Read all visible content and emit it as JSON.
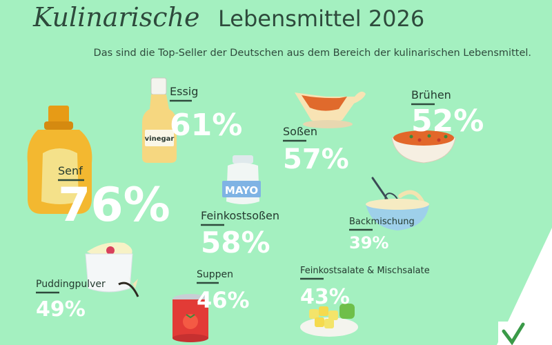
{
  "chart_data": {
    "type": "table",
    "title_script": "Kulinarische",
    "title_rest": "Lebensmittel 2026",
    "subtitle": "Das sind die Top-Seller der Deutschen aus dem Bereich der kulinarischen Lebensmittel.",
    "unit": "%",
    "categories": [
      "Senf",
      "Essig",
      "Feinkostsoßen",
      "Soßen",
      "Brühen",
      "Puddingpulver",
      "Suppen",
      "Feinkostsalate & Mischsalate",
      "Backmischung"
    ],
    "values": [
      76,
      61,
      58,
      57,
      52,
      49,
      46,
      43,
      39
    ],
    "labels": [
      "76%",
      "61%",
      "58%",
      "57%",
      "52%",
      "49%",
      "46%",
      "43%",
      "39%"
    ],
    "icons": [
      "mustard-bottle-icon",
      "vinegar-bottle-icon",
      "mayo-jar-icon",
      "gravy-boat-icon",
      "soup-bowl-icon",
      "pudding-bowl-icon",
      "tomato-can-icon",
      "salad-plate-icon",
      "whisk-bowl-icon"
    ],
    "jar_label_mayo": "MAYO",
    "bottle_label_vinegar": "vinegar"
  },
  "colors": {
    "background": "#a4f0c0",
    "title": "#2e4a3c",
    "label": "#243a2f",
    "value": "#ffffff",
    "accent": "#3a9a48"
  }
}
